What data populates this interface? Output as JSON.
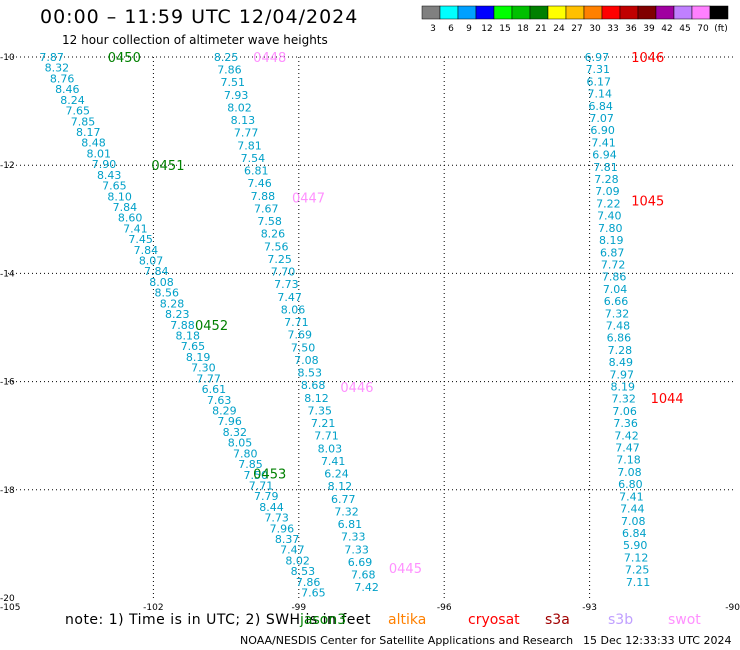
{
  "header": {
    "title": "00:00 – 11:59 UTC 12/04/2024",
    "subtitle": "12 hour collection of altimeter wave heights"
  },
  "color_scale": {
    "labels": [
      "3",
      "6",
      "9",
      "12",
      "15",
      "18",
      "21",
      "24",
      "27",
      "30",
      "33",
      "36",
      "39",
      "42",
      "45",
      "70",
      "(ft)"
    ],
    "colors": [
      "#808080",
      "#00ffff",
      "#00a0ff",
      "#0000ff",
      "#00ff00",
      "#00c000",
      "#008000",
      "#ffff00",
      "#ffc000",
      "#ff8000",
      "#ff0000",
      "#c00000",
      "#800000",
      "#a000a0",
      "#c080ff",
      "#ff80ff",
      "#000000"
    ]
  },
  "footer": {
    "note": "note:  1) Time is in UTC; 2) SWH is in feet",
    "credit": "NOAA/NESDIS Center for Satellite Applications and Research",
    "timestamp": "15 Dec 12:33:33 UTC 2024",
    "satellites": [
      {
        "name": "jason3",
        "color": "#008000"
      },
      {
        "name": "altika",
        "color": "#ff8000"
      },
      {
        "name": "cryosat",
        "color": "#ff0000"
      },
      {
        "name": "s3a",
        "color": "#a00000"
      },
      {
        "name": "s3b",
        "color": "#c0a0ff"
      },
      {
        "name": "swot",
        "color": "#ff90ff"
      }
    ]
  },
  "chart_data": {
    "type": "scatter",
    "title": "00:00 – 11:59 UTC 12/04/2024",
    "xlim": [
      -105,
      -90
    ],
    "ylim": [
      -20,
      -10
    ],
    "x_ticks": [
      -105,
      -102,
      -99,
      -96,
      -93,
      -90
    ],
    "y_ticks": [
      -10,
      -12,
      -14,
      -16,
      -18,
      -20
    ],
    "grid": true,
    "series": [
      {
        "name": "jason3",
        "color": "#00a0c8",
        "x_start": -104.1,
        "y_start": -10.0,
        "x_end": -98.7,
        "y_end": -19.9,
        "values": [
          7.87,
          8.32,
          8.76,
          8.46,
          8.24,
          7.65,
          7.85,
          8.17,
          8.48,
          8.01,
          7.9,
          8.43,
          7.65,
          8.1,
          7.84,
          8.6,
          7.41,
          7.45,
          7.84,
          8.07,
          7.84,
          8.08,
          8.56,
          8.28,
          8.23,
          7.88,
          8.18,
          7.65,
          8.19,
          7.3,
          7.77,
          6.61,
          7.63,
          8.29,
          7.96,
          8.32,
          8.05,
          7.8,
          7.85,
          7.5,
          7.71,
          7.79,
          8.44,
          7.73,
          7.96,
          8.37,
          7.47,
          8.02,
          8.53,
          7.86,
          7.65
        ],
        "time_labels": [
          {
            "text": "0450",
            "lon": -102.6,
            "lat": -10.0
          },
          {
            "text": "0451",
            "lon": -101.7,
            "lat": -12.0
          },
          {
            "text": "0452",
            "lon": -100.8,
            "lat": -14.95
          },
          {
            "text": "0453",
            "lon": -99.6,
            "lat": -17.7
          }
        ]
      },
      {
        "name": "swot",
        "color": "#00a0c8",
        "x_start": -100.5,
        "y_start": -10.0,
        "x_end": -97.6,
        "y_end": -19.8,
        "values": [
          8.25,
          7.86,
          7.51,
          7.93,
          8.02,
          8.13,
          7.77,
          7.81,
          7.54,
          6.81,
          7.46,
          7.88,
          7.67,
          7.58,
          8.26,
          7.56,
          7.25,
          7.7,
          7.73,
          7.47,
          8.06,
          7.71,
          7.69,
          7.5,
          7.08,
          8.53,
          8.68,
          8.12,
          7.35,
          7.21,
          7.71,
          8.03,
          7.41,
          6.24,
          8.12,
          6.77,
          7.32,
          6.81,
          7.33,
          7.33,
          6.69,
          7.68,
          7.42
        ],
        "time_labels": [
          {
            "text": "0448",
            "lon": -99.6,
            "lat": -10.0
          },
          {
            "text": "0447",
            "lon": -98.8,
            "lat": -12.6
          },
          {
            "text": "0446",
            "lon": -97.8,
            "lat": -16.1
          },
          {
            "text": "0445",
            "lon": -96.8,
            "lat": -19.45
          }
        ]
      },
      {
        "name": "cryosat",
        "color": "#00a0c8",
        "x_start": -92.85,
        "y_start": -10.0,
        "x_end": -92.0,
        "y_end": -19.7,
        "values": [
          6.97,
          7.31,
          6.17,
          7.14,
          6.84,
          7.07,
          6.9,
          7.41,
          6.94,
          7.81,
          7.28,
          7.09,
          7.22,
          7.4,
          7.8,
          8.19,
          6.87,
          7.72,
          7.86,
          7.04,
          6.66,
          7.32,
          7.48,
          6.86,
          7.28,
          8.49,
          7.97,
          8.19,
          7.32,
          7.06,
          7.36,
          7.42,
          7.47,
          7.18,
          7.08,
          6.8,
          7.41,
          7.44,
          7.08,
          6.84,
          5.9,
          7.12,
          7.25,
          7.11
        ],
        "time_labels": [
          {
            "text": "1046",
            "lon": -91.8,
            "lat": -10.0
          },
          {
            "text": "1045",
            "lon": -91.8,
            "lat": -12.65
          },
          {
            "text": "1044",
            "lon": -91.4,
            "lat": -16.3
          }
        ]
      }
    ]
  }
}
